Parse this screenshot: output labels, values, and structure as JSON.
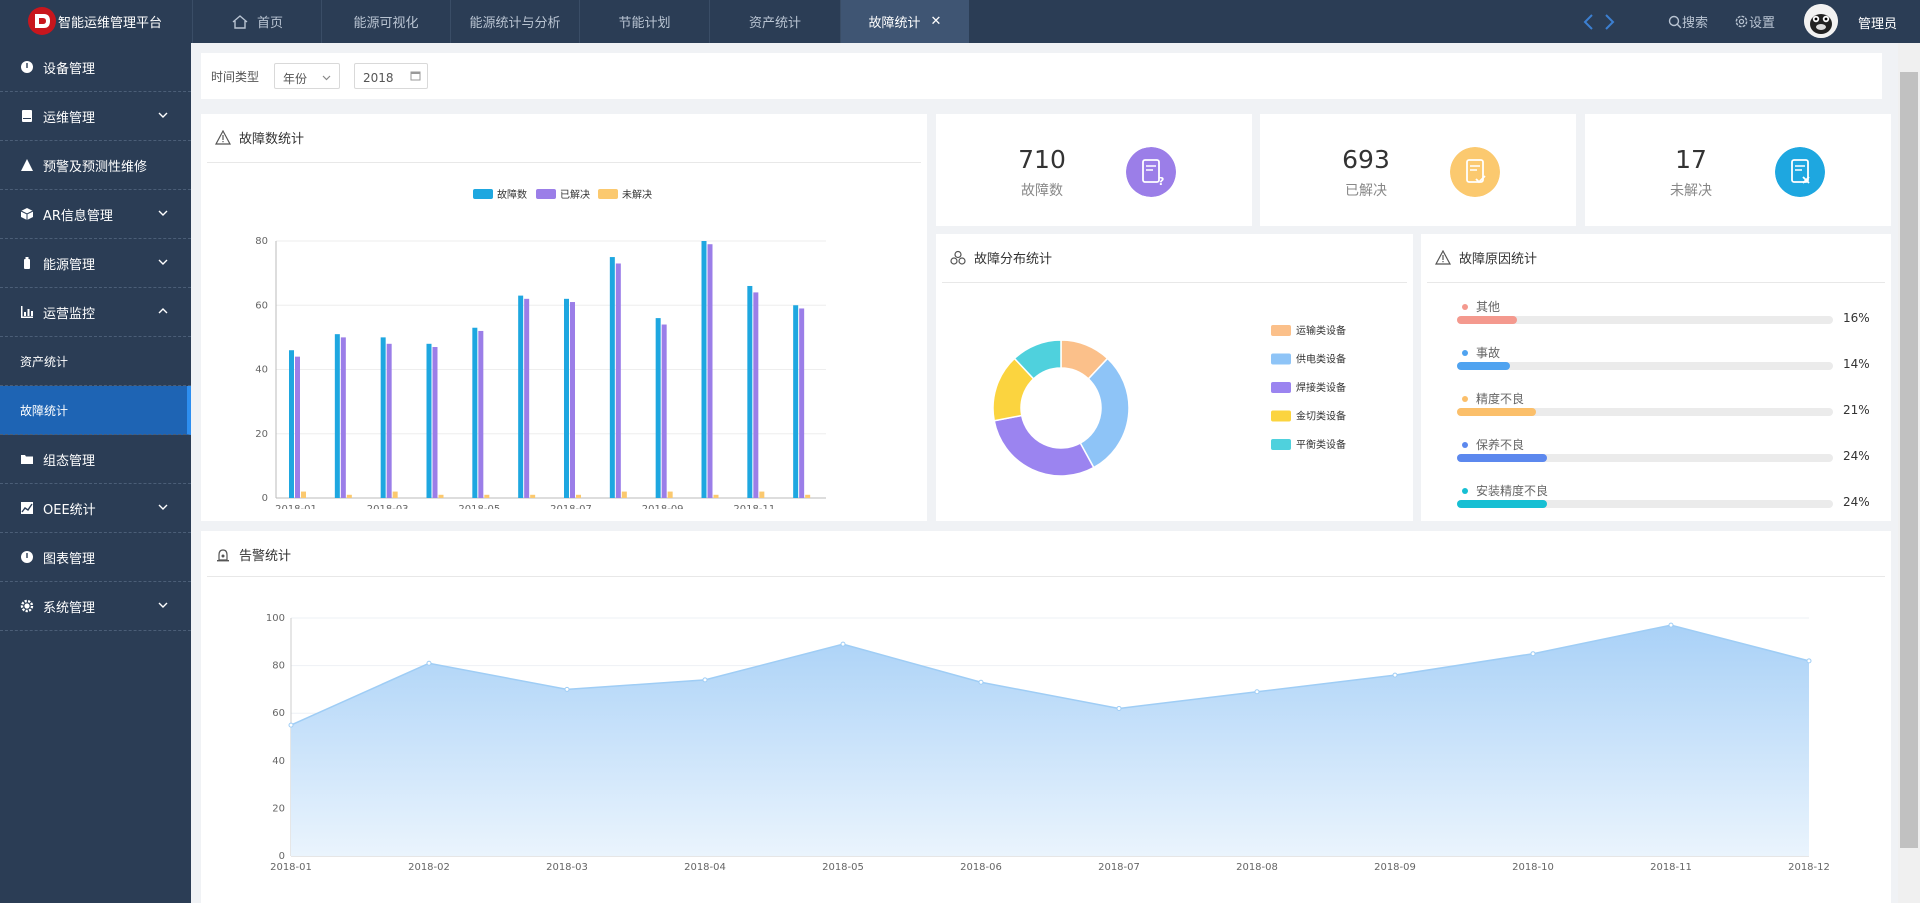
{
  "app": {
    "title": "智能运维管理平台"
  },
  "tabs": [
    {
      "label": "首页"
    },
    {
      "label": "能源可视化"
    },
    {
      "label": "能源统计与分析"
    },
    {
      "label": "节能计划"
    },
    {
      "label": "资产统计"
    },
    {
      "label": "故障统计"
    }
  ],
  "header": {
    "search_label": "搜索",
    "settings_label": "设置",
    "user_name": "管理员"
  },
  "sidebar": {
    "items": [
      {
        "label": "设备管理",
        "icon": "info-icon"
      },
      {
        "label": "运维管理",
        "icon": "book-icon"
      },
      {
        "label": "预警及预测性维修",
        "icon": "warning-icon"
      },
      {
        "label": "AR信息管理",
        "icon": "cube-icon"
      },
      {
        "label": "能源管理",
        "icon": "battery-icon"
      },
      {
        "label": "运营监控",
        "icon": "chart-icon"
      },
      {
        "label": "资产统计"
      },
      {
        "label": "故障统计"
      },
      {
        "label": "组态管理",
        "icon": "folder-icon"
      },
      {
        "label": "OEE统计",
        "icon": "area-chart-icon"
      },
      {
        "label": "图表管理",
        "icon": "info-icon"
      },
      {
        "label": "系统管理",
        "icon": "gear-icon"
      }
    ]
  },
  "filter": {
    "label": "时间类型",
    "period": "年份",
    "year": "2018"
  },
  "panels": {
    "fault_chart_title": "故障数统计",
    "distribution_title": "故障分布统计",
    "cause_title": "故障原因统计",
    "alarm_title": "告警统计"
  },
  "stats": [
    {
      "value": "710",
      "label": "故障数",
      "color": "#9b7ee8"
    },
    {
      "value": "693",
      "label": "已解决",
      "color": "#fbc96f"
    },
    {
      "value": "17",
      "label": "未解决",
      "color": "#1ea7e0"
    }
  ],
  "causes": [
    {
      "name": "其他",
      "percent": 16,
      "label": "16%",
      "color": "#f4998e"
    },
    {
      "name": "事故",
      "percent": 14,
      "label": "14%",
      "color": "#4fa3f0"
    },
    {
      "name": "精度不良",
      "percent": 21,
      "label": "21%",
      "color": "#fbbf6a"
    },
    {
      "name": "保养不良",
      "percent": 24,
      "label": "24%",
      "color": "#5c88ee"
    },
    {
      "name": "安装精度不良",
      "percent": 24,
      "label": "24%",
      "color": "#16bfd3"
    }
  ],
  "chart_data": [
    {
      "type": "bar",
      "title": "故障数统计",
      "x": [
        "2018-01",
        "2018-02",
        "2018-03",
        "2018-04",
        "2018-05",
        "2018-06",
        "2018-07",
        "2018-08",
        "2018-09",
        "2018-10",
        "2018-11",
        "2018-12"
      ],
      "tick_labels": [
        "2018-01",
        "2018-03",
        "2018-05",
        "2018-07",
        "2018-09",
        "2018-11"
      ],
      "yticks": [
        "0",
        "20",
        "40",
        "60",
        "80"
      ],
      "ylim": [
        0,
        80
      ],
      "legend_placement": "top-center",
      "series": [
        {
          "name": "故障数",
          "color": "#1ea7e0",
          "values": [
            46,
            51,
            50,
            48,
            53,
            63,
            62,
            75,
            56,
            80,
            66,
            60
          ]
        },
        {
          "name": "已解决",
          "color": "#9b7ee8",
          "values": [
            44,
            50,
            48,
            47,
            52,
            62,
            61,
            73,
            54,
            79,
            64,
            59
          ]
        },
        {
          "name": "未解决",
          "color": "#fbc96f",
          "values": [
            2,
            1,
            2,
            1,
            1,
            1,
            1,
            2,
            2,
            1,
            2,
            1
          ]
        }
      ]
    },
    {
      "type": "pie",
      "title": "故障分布统计",
      "donut": true,
      "legend_placement": "right",
      "slices": [
        {
          "name": "运输类设备",
          "value": 12,
          "color": "#fbc08a"
        },
        {
          "name": "供电类设备",
          "value": 30,
          "color": "#8ec4f7"
        },
        {
          "name": "焊接类设备",
          "value": 30,
          "color": "#9b84f0"
        },
        {
          "name": "金切类设备",
          "value": 16,
          "color": "#fbd43f"
        },
        {
          "name": "平衡类设备",
          "value": 12,
          "color": "#4fd1dd"
        }
      ]
    },
    {
      "type": "area",
      "title": "告警统计",
      "x": [
        "2018-01",
        "2018-02",
        "2018-03",
        "2018-04",
        "2018-05",
        "2018-06",
        "2018-07",
        "2018-08",
        "2018-09",
        "2018-10",
        "2018-11",
        "2018-12"
      ],
      "yticks": [
        "0",
        "20",
        "40",
        "60",
        "80",
        "100"
      ],
      "ylim": [
        0,
        100
      ],
      "color": "#9fcdf5",
      "values": [
        55,
        81,
        70,
        74,
        89,
        73,
        62,
        69,
        76,
        85,
        97,
        82
      ]
    }
  ]
}
